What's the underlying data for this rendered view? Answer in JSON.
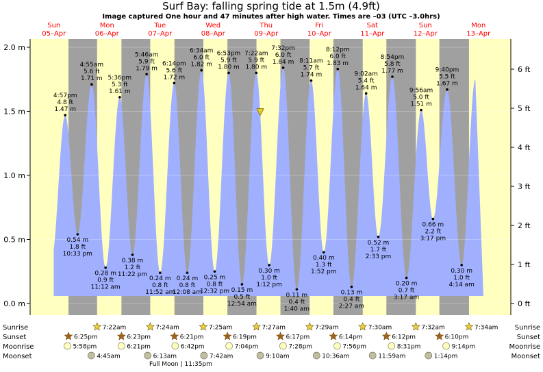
{
  "title": "Surf Bay: falling  spring tide at 1.5m (4.9ft)",
  "subtitle": "Image captured One hour and 47 minutes after high water. Times are –03 (UTC –3.0hrs)",
  "colors": {
    "day": "#ffffc0",
    "night": "#a0a0a0",
    "water": "#a0b0ff",
    "day_label": "#ff0000",
    "sun": "#e8d040",
    "sunset": "#a06020",
    "moonrise": "#ffffc0",
    "moonset": "#c0c0a0"
  },
  "chart_data": {
    "type": "area",
    "title": "Surf Bay: falling  spring tide at 1.5m (4.9ft)",
    "ylabel_left_unit": "m",
    "ylabel_right_unit": "ft",
    "ylim": [
      0,
      2.1
    ],
    "yticks_m": [
      "0.0 m",
      "0.5 m",
      "1.0 m",
      "1.5 m",
      "2.0 m"
    ],
    "yticks_ft": [
      "0 ft",
      "1 ft",
      "2 ft",
      "3 ft",
      "4 ft",
      "5 ft",
      "6 ft"
    ],
    "days": [
      {
        "name": "Sun",
        "date": "05–Apr"
      },
      {
        "name": "Mon",
        "date": "06–Apr"
      },
      {
        "name": "Tue",
        "date": "07–Apr"
      },
      {
        "name": "Wed",
        "date": "08–Apr"
      },
      {
        "name": "Thu",
        "date": "09–Apr"
      },
      {
        "name": "Fri",
        "date": "10–Apr"
      },
      {
        "name": "Sat",
        "date": "11–Apr"
      },
      {
        "name": "Sun",
        "date": "12–Apr"
      },
      {
        "name": "Mon",
        "date": "13–Apr"
      }
    ],
    "tides": [
      {
        "type": "high",
        "day": 0,
        "time": "4:57 pm",
        "m": 1.47,
        "ft": "4.8 ft",
        "m_label": "1.47 m"
      },
      {
        "type": "low",
        "day": 0,
        "time": "10:33 pm",
        "m": 0.54,
        "ft": "1.8 ft",
        "m_label": "0.54 m"
      },
      {
        "type": "high",
        "day": 1,
        "time": "4:55 am",
        "m": 1.71,
        "ft": "5.6 ft",
        "m_label": "1.71 m"
      },
      {
        "type": "low",
        "day": 1,
        "time": "11:12 am",
        "m": 0.28,
        "ft": "0.9 ft",
        "m_label": "0.28 m"
      },
      {
        "type": "high",
        "day": 1,
        "time": "5:36 pm",
        "m": 1.61,
        "ft": "5.3 ft",
        "m_label": "1.61 m"
      },
      {
        "type": "low",
        "day": 1,
        "time": "11:22 pm",
        "m": 0.38,
        "ft": "1.2 ft",
        "m_label": "0.38 m"
      },
      {
        "type": "high",
        "day": 2,
        "time": "5:46 am",
        "m": 1.79,
        "ft": "5.9 ft",
        "m_label": "1.79 m"
      },
      {
        "type": "low",
        "day": 2,
        "time": "11:52 am",
        "m": 0.24,
        "ft": "0.8 ft",
        "m_label": "0.24 m"
      },
      {
        "type": "high",
        "day": 2,
        "time": "6:14 pm",
        "m": 1.72,
        "ft": "5.6 ft",
        "m_label": "1.72 m"
      },
      {
        "type": "low",
        "day": 3,
        "time": "12:08 am",
        "m": 0.24,
        "ft": "0.8 ft",
        "m_label": "0.24 m"
      },
      {
        "type": "high",
        "day": 3,
        "time": "6:34 am",
        "m": 1.82,
        "ft": "6.0 ft",
        "m_label": "1.82 m"
      },
      {
        "type": "low",
        "day": 3,
        "time": "12:32 pm",
        "m": 0.25,
        "ft": "0.8 ft",
        "m_label": "0.25 m"
      },
      {
        "type": "high",
        "day": 3,
        "time": "6:53 pm",
        "m": 1.8,
        "ft": "5.9 ft",
        "m_label": "1.80 m"
      },
      {
        "type": "low",
        "day": 4,
        "time": "12:54 am",
        "m": 0.15,
        "ft": "0.5 ft",
        "m_label": "0.15 m"
      },
      {
        "type": "high",
        "day": 4,
        "time": "7:22 am",
        "m": 1.8,
        "ft": "5.9 ft",
        "m_label": "1.80 m"
      },
      {
        "type": "low",
        "day": 4,
        "time": "1:12 pm",
        "m": 0.3,
        "ft": "1.0 ft",
        "m_label": "0.30 m"
      },
      {
        "type": "high",
        "day": 4,
        "time": "7:32 pm",
        "m": 1.84,
        "ft": "6.0 ft",
        "m_label": "1.84 m"
      },
      {
        "type": "low",
        "day": 5,
        "time": "1:40 am",
        "m": 0.11,
        "ft": "0.4 ft",
        "m_label": "0.11 m"
      },
      {
        "type": "high",
        "day": 5,
        "time": "8:11 am",
        "m": 1.74,
        "ft": "5.7 ft",
        "m_label": "1.74 m"
      },
      {
        "type": "low",
        "day": 5,
        "time": "1:52 pm",
        "m": 0.4,
        "ft": "1.3 ft",
        "m_label": "0.40 m"
      },
      {
        "type": "high",
        "day": 5,
        "time": "8:12 pm",
        "m": 1.83,
        "ft": "6.0 ft",
        "m_label": "1.83 m"
      },
      {
        "type": "low",
        "day": 6,
        "time": "2:27 am",
        "m": 0.13,
        "ft": "0.4 ft",
        "m_label": "0.13 m"
      },
      {
        "type": "high",
        "day": 6,
        "time": "9:02 am",
        "m": 1.64,
        "ft": "5.4 ft",
        "m_label": "1.64 m"
      },
      {
        "type": "low",
        "day": 6,
        "time": "2:33 pm",
        "m": 0.52,
        "ft": "1.7 ft",
        "m_label": "0.52 m"
      },
      {
        "type": "high",
        "day": 6,
        "time": "8:54 pm",
        "m": 1.77,
        "ft": "5.8 ft",
        "m_label": "1.77 m"
      },
      {
        "type": "low",
        "day": 7,
        "time": "3:17 am",
        "m": 0.2,
        "ft": "0.7 ft",
        "m_label": "0.20 m"
      },
      {
        "type": "high",
        "day": 7,
        "time": "9:56 am",
        "m": 1.51,
        "ft": "5.0 ft",
        "m_label": "1.51 m"
      },
      {
        "type": "low",
        "day": 7,
        "time": "3:17 pm",
        "m": 0.66,
        "ft": "2.2 ft",
        "m_label": "0.66 m"
      },
      {
        "type": "high",
        "day": 7,
        "time": "9:40 pm",
        "m": 1.67,
        "ft": "5.5 ft",
        "m_label": "1.67 m"
      },
      {
        "type": "low",
        "day": 8,
        "time": "4:14 am",
        "m": 0.3,
        "ft": "1.0 ft",
        "m_label": "0.30 m"
      }
    ],
    "current_tide_m": 1.5,
    "current_time_label": "7:22 am + 1h47m"
  },
  "astro": {
    "rows": [
      "Sunrise",
      "Sunset",
      "Moonrise",
      "Moonset"
    ],
    "sunrise": [
      {
        "day": 1,
        "time": "7:22am"
      },
      {
        "day": 2,
        "time": "7:24am"
      },
      {
        "day": 3,
        "time": "7:25am"
      },
      {
        "day": 4,
        "time": "7:27am"
      },
      {
        "day": 5,
        "time": "7:29am"
      },
      {
        "day": 6,
        "time": "7:30am"
      },
      {
        "day": 7,
        "time": "7:32am"
      },
      {
        "day": 8,
        "time": "7:34am"
      }
    ],
    "sunset": [
      {
        "day": 0,
        "time": "6:25pm"
      },
      {
        "day": 1,
        "time": "6:23pm"
      },
      {
        "day": 2,
        "time": "6:21pm"
      },
      {
        "day": 3,
        "time": "6:19pm"
      },
      {
        "day": 4,
        "time": "6:17pm"
      },
      {
        "day": 5,
        "time": "6:14pm"
      },
      {
        "day": 6,
        "time": "6:12pm"
      },
      {
        "day": 7,
        "time": "6:10pm"
      }
    ],
    "moonrise": [
      {
        "day": 0,
        "time": "5:58pm"
      },
      {
        "day": 1,
        "time": "6:21pm"
      },
      {
        "day": 2,
        "time": "6:42pm"
      },
      {
        "day": 3,
        "time": "7:04pm"
      },
      {
        "day": 4,
        "time": "7:28pm"
      },
      {
        "day": 5,
        "time": "7:56pm"
      },
      {
        "day": 6,
        "time": "8:31pm"
      },
      {
        "day": 7,
        "time": "9:14pm"
      }
    ],
    "moonset": [
      {
        "day": 1,
        "time": "4:45am"
      },
      {
        "day": 2,
        "time": "6:13am"
      },
      {
        "day": 3,
        "time": "7:42am"
      },
      {
        "day": 4,
        "time": "9:10am"
      },
      {
        "day": 5,
        "time": "10:36am"
      },
      {
        "day": 6,
        "time": "11:59am"
      },
      {
        "day": 7,
        "time": "1:14pm"
      }
    ],
    "full_moon": "Full Moon | 11:35pm"
  }
}
